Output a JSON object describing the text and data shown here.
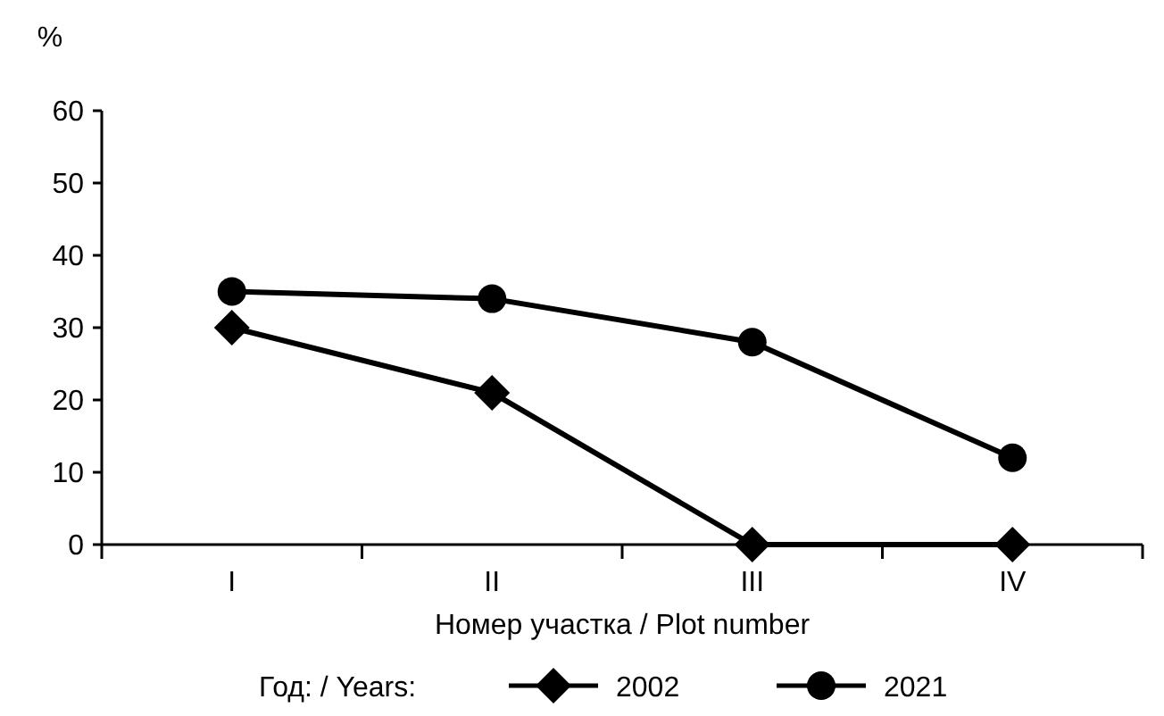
{
  "chart_data": {
    "type": "line",
    "ylabel": "%",
    "xlabel": "Номер участка / Plot number",
    "legend_title": "Год: / Years:",
    "categories": [
      "I",
      "II",
      "III",
      "IV"
    ],
    "ylim": [
      0,
      60
    ],
    "yticks": [
      0,
      10,
      20,
      30,
      40,
      50,
      60
    ],
    "grid": false,
    "legend": "bottom",
    "line_style": "solid",
    "series": [
      {
        "name": "2002",
        "color": "#000000",
        "marker": "diamond",
        "values": [
          30,
          21,
          0,
          0
        ]
      },
      {
        "name": "2021",
        "color": "#000000",
        "marker": "circle",
        "values": [
          35,
          34,
          28,
          12
        ]
      }
    ]
  }
}
